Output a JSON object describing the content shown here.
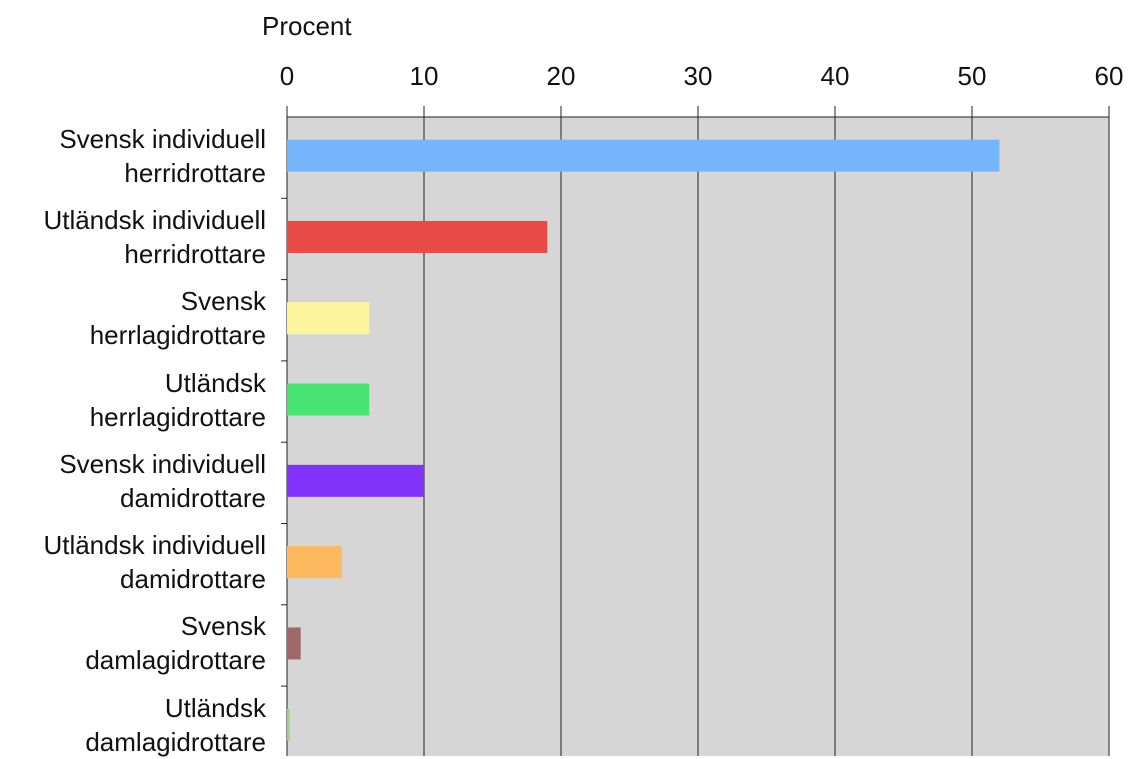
{
  "chart_data": {
    "type": "bar",
    "orientation": "horizontal",
    "x_label": "Procent",
    "categories": [
      "Svensk individuell herridrottare",
      "Utländsk individuell herridrottare",
      "Svensk herrlagidrottare",
      "Utländsk herrlagidrottare",
      "Svensk individuell damidrottare",
      "Utländsk individuell damidrottare",
      "Svensk damlagidrottare",
      "Utländsk damlagidrottare"
    ],
    "values": [
      52,
      19,
      6,
      6,
      10,
      4,
      1,
      0.2
    ],
    "colors": [
      "#74b5fb",
      "#e84a45",
      "#fdf59d",
      "#47e472",
      "#8233fb",
      "#feb95e",
      "#a06868",
      "#9fd189"
    ],
    "xlim": [
      0,
      60
    ],
    "xticks": [
      0,
      10,
      20,
      30,
      40,
      50,
      60
    ],
    "grid": true,
    "plot_background": "#d6d6d6"
  }
}
